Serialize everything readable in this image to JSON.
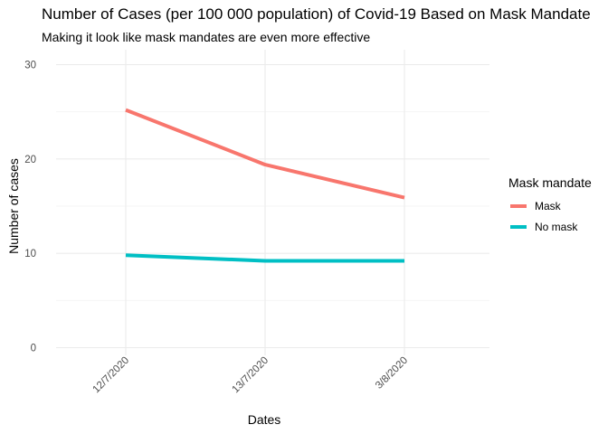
{
  "chart_data": {
    "type": "line",
    "title": "Number of Cases (per 100 000 population) of Covid-19 Based on Mask Mandate",
    "subtitle": "Making it look like mask mandates are even more effective",
    "xlabel": "Dates",
    "ylabel": "Number of cases",
    "categories": [
      "12/7/2020",
      "13/7/2020",
      "3/8/2020"
    ],
    "y_ticks": [
      0,
      10,
      20,
      30
    ],
    "ylim": [
      0,
      31
    ],
    "grid": true,
    "legend": {
      "title": "Mask mandate",
      "placement": "right"
    },
    "series": [
      {
        "name": "Mask",
        "color": "#F8766D",
        "values": [
          25.2,
          19.4,
          15.9
        ]
      },
      {
        "name": "No mask",
        "color": "#00BFC4",
        "values": [
          9.8,
          9.2,
          9.2
        ]
      }
    ]
  }
}
